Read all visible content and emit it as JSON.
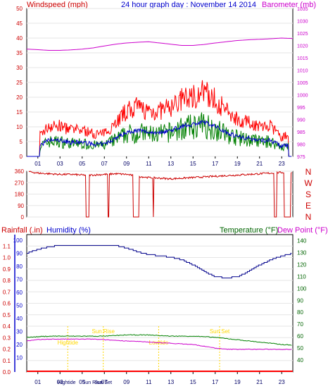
{
  "panel1": {
    "title": "24 hour graph day : November 14 2014",
    "left_label": "Windspeed (mph)",
    "right_label": "Barometer (mb)"
  },
  "panel2": {
    "dir_labels": [
      "N",
      "W",
      "S",
      "E",
      "N"
    ]
  },
  "panel3": {
    "rain_label": "Rainfall (.in)",
    "humidity_label": "Humidity (%)",
    "temp_label": "Temperature (°F)",
    "dew_label": "Dew Point (°F)",
    "event_labels": [
      "Hightide",
      "Sun Rise",
      "Lowtide",
      "Sun Set"
    ],
    "bottom_event_labels": [
      "Hightide",
      "Sun Rise",
      "Sun Set"
    ]
  },
  "colors": {
    "windspeed": "#ff0000",
    "wind_avg": "#0000cc",
    "wind_green": "#008000",
    "barometer": "#cc00cc",
    "direction": "#cc0000",
    "humidity": "#00008b",
    "temperature": "#008000",
    "dewpoint": "#cc00cc",
    "rainfall": "#ff0000",
    "events": "#ffd700",
    "axis_red": "#cc0000",
    "axis_purple": "#cc00cc",
    "axis_blue": "#0000cc",
    "axis_green": "#006400"
  },
  "chart_data": [
    {
      "type": "line",
      "title": "24 hour graph day : November 14 2014",
      "ylabel": "Windspeed (mph)",
      "y2label": "Barometer (mb)",
      "ylim": [
        0,
        50
      ],
      "y2lim": [
        975,
        1035
      ],
      "x_ticks": [
        "01",
        "03",
        "05",
        "07",
        "09",
        "11",
        "13",
        "15",
        "17",
        "19",
        "21",
        "23"
      ],
      "y_ticks": [
        0,
        5,
        10,
        15,
        20,
        25,
        30,
        35,
        40,
        45,
        50
      ],
      "y2_ticks": [
        975,
        980,
        985,
        990,
        995,
        1000,
        1005,
        1010,
        1015,
        1020,
        1025,
        1030,
        1035
      ],
      "x_hours": [
        0,
        1,
        2,
        3,
        4,
        5,
        6,
        7,
        8,
        9,
        10,
        11,
        12,
        13,
        14,
        15,
        16,
        17,
        18,
        19,
        20,
        21,
        22,
        23,
        24
      ],
      "series": [
        {
          "name": "Windspeed",
          "axis": "left",
          "values": [
            0,
            5,
            8,
            8,
            7,
            7,
            6,
            6,
            9,
            12,
            13,
            12,
            12,
            13,
            15,
            16,
            17,
            15,
            12,
            10,
            9,
            8,
            8,
            5,
            6
          ]
        },
        {
          "name": "Barometer",
          "axis": "right",
          "values": [
            1018.5,
            1018.3,
            1018,
            1018,
            1018.2,
            1018.5,
            1019,
            1019.8,
            1020.5,
            1021,
            1021.3,
            1021.5,
            1021,
            1020.5,
            1020,
            1020,
            1020.4,
            1021,
            1021.5,
            1022,
            1022.3,
            1022.5,
            1022.7,
            1023,
            1022.8
          ]
        }
      ]
    },
    {
      "type": "line",
      "ylabel": "Wind direction",
      "ylim": [
        0,
        360
      ],
      "y_ticks": [
        0,
        90,
        180,
        270,
        360
      ],
      "x_hours": [
        0,
        1,
        2,
        3,
        4,
        5,
        6,
        7,
        8,
        9,
        10,
        11,
        12,
        13,
        14,
        15,
        16,
        17,
        18,
        19,
        20,
        21,
        22,
        23,
        24
      ],
      "series": [
        {
          "name": "Direction",
          "values": [
            360,
            345,
            340,
            335,
            335,
            330,
            330,
            335,
            340,
            335,
            320,
            310,
            305,
            300,
            305,
            310,
            315,
            320,
            325,
            330,
            335,
            340,
            345,
            350,
            350
          ]
        }
      ]
    },
    {
      "type": "line",
      "ylabel": "Rainfall (.in)",
      "y2label": "Temperature (°F)",
      "ylim": [
        0,
        1.2
      ],
      "y2lim": [
        30,
        145
      ],
      "humidity_ylim": [
        0,
        100
      ],
      "y_ticks": [
        0.0,
        0.1,
        0.2,
        0.3,
        0.4,
        0.5,
        0.6,
        0.7,
        0.8,
        0.9,
        1.0,
        1.1
      ],
      "humidity_ticks": [
        10,
        20,
        30,
        40,
        50,
        60,
        70,
        80,
        90,
        100
      ],
      "y2_ticks": [
        40,
        50,
        60,
        70,
        80,
        90,
        100,
        110,
        120,
        130,
        140
      ],
      "x_ticks": [
        "01",
        "03",
        "05",
        "07",
        "09",
        "11",
        "13",
        "15",
        "17",
        "19",
        "21",
        "23"
      ],
      "x_hours": [
        0,
        1,
        2,
        3,
        4,
        5,
        6,
        7,
        8,
        9,
        10,
        11,
        12,
        13,
        14,
        15,
        16,
        17,
        18,
        19,
        20,
        21,
        22,
        23,
        24
      ],
      "series": [
        {
          "name": "Humidity",
          "axis": "humidity",
          "values": [
            90,
            93,
            95,
            96,
            96,
            96,
            96,
            96,
            96,
            94,
            91,
            89,
            88,
            87,
            85,
            81,
            76,
            72,
            71,
            72,
            76,
            81,
            85,
            88,
            90
          ]
        },
        {
          "name": "Temperature",
          "axis": "right",
          "values": [
            59,
            59.5,
            60,
            60,
            60,
            60,
            60,
            60,
            60.5,
            61,
            61,
            61,
            60.5,
            60,
            60,
            60,
            59.5,
            59,
            58,
            57,
            56,
            55,
            54,
            53,
            52.5
          ]
        },
        {
          "name": "Dew Point",
          "axis": "right",
          "values": [
            56,
            57,
            57.5,
            57.5,
            57.5,
            57.5,
            57.5,
            57,
            56.5,
            56,
            55.5,
            55,
            54.5,
            54,
            53.5,
            53,
            51.5,
            50,
            49,
            49,
            49,
            49,
            49,
            49,
            49
          ]
        },
        {
          "name": "Rainfall",
          "axis": "left",
          "values": [
            0,
            0,
            0,
            0,
            0,
            0,
            0,
            0,
            0,
            0,
            0,
            0,
            0,
            0,
            0,
            0,
            0,
            0,
            0,
            0,
            0,
            0,
            0,
            0,
            0
          ]
        }
      ],
      "annotations": [
        {
          "label": "Hightide",
          "hour": 3.7
        },
        {
          "label": "Sun Rise",
          "hour": 6.9
        },
        {
          "label": "Lowtide",
          "hour": 11.9
        },
        {
          "label": "Sun Set",
          "hour": 17.4
        }
      ]
    }
  ]
}
